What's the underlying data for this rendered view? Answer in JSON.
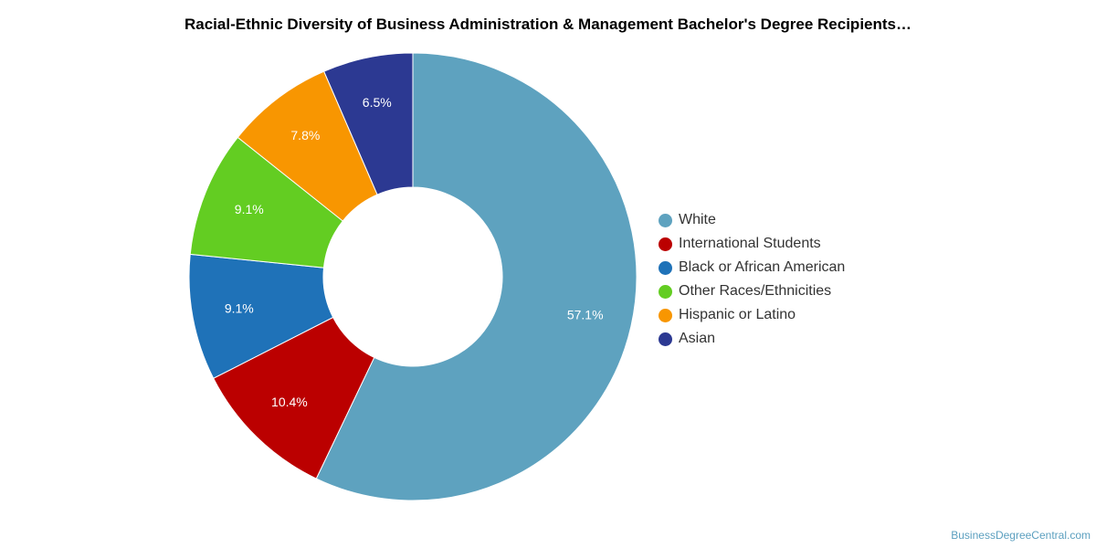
{
  "chart_data": {
    "type": "pie",
    "variant": "donut",
    "title": "Racial-Ethnic Diversity of Business Administration & Management Bachelor's Degree Recipients…",
    "categories": [
      "White",
      "International Students",
      "Black or African American",
      "Other Races/Ethnicities",
      "Hispanic or Latino",
      "Asian"
    ],
    "values": [
      57.1,
      10.4,
      9.1,
      9.1,
      7.8,
      6.5
    ],
    "value_labels": [
      "57.1%",
      "10.4%",
      "9.1%",
      "9.1%",
      "7.8%",
      "6.5%"
    ],
    "colors": [
      "#5ea2bf",
      "#bb0000",
      "#1f72b8",
      "#63cd22",
      "#f89601",
      "#2c3992"
    ],
    "legend_position": "right",
    "start_angle": "top, clockwise"
  },
  "credit": "BusinessDegreeCentral.com"
}
